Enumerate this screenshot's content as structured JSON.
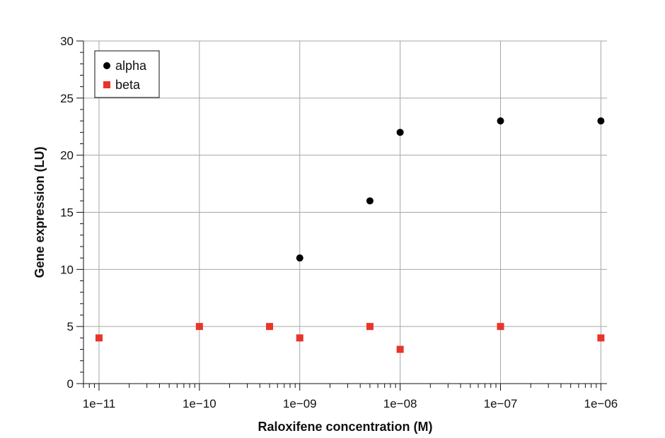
{
  "chart_data": {
    "type": "scatter",
    "title": "",
    "xlabel": "Raloxifene concentration (M)",
    "ylabel": "Gene expression (LU)",
    "xscale": "log",
    "xlim": [
      7e-12,
      1.15e-06
    ],
    "ylim": [
      0,
      30
    ],
    "x_ticks": [
      1e-11,
      1e-10,
      1e-09,
      1e-08,
      1e-07,
      1e-06
    ],
    "x_tick_labels": [
      "1e−11",
      "1e−10",
      "1e−09",
      "1e−08",
      "1e−07",
      "1e−06"
    ],
    "y_ticks": [
      0,
      5,
      10,
      15,
      20,
      25,
      30
    ],
    "y_tick_labels": [
      "0",
      "5",
      "10",
      "15",
      "20",
      "25",
      "30"
    ],
    "grid": true,
    "legend_position": "top-left",
    "series": [
      {
        "name": "alpha",
        "marker": "circle",
        "color": "#000000",
        "points": [
          {
            "x": 1e-09,
            "y": 11
          },
          {
            "x": 5e-09,
            "y": 16
          },
          {
            "x": 1e-08,
            "y": 22
          },
          {
            "x": 1e-07,
            "y": 23
          },
          {
            "x": 1e-06,
            "y": 23
          }
        ]
      },
      {
        "name": "beta",
        "marker": "square",
        "color": "#e8352a",
        "points": [
          {
            "x": 1e-11,
            "y": 4
          },
          {
            "x": 1e-10,
            "y": 5
          },
          {
            "x": 5e-10,
            "y": 5
          },
          {
            "x": 1e-09,
            "y": 4
          },
          {
            "x": 5e-09,
            "y": 5
          },
          {
            "x": 1e-08,
            "y": 3
          },
          {
            "x": 1e-07,
            "y": 5
          },
          {
            "x": 1e-06,
            "y": 4
          }
        ]
      }
    ]
  }
}
